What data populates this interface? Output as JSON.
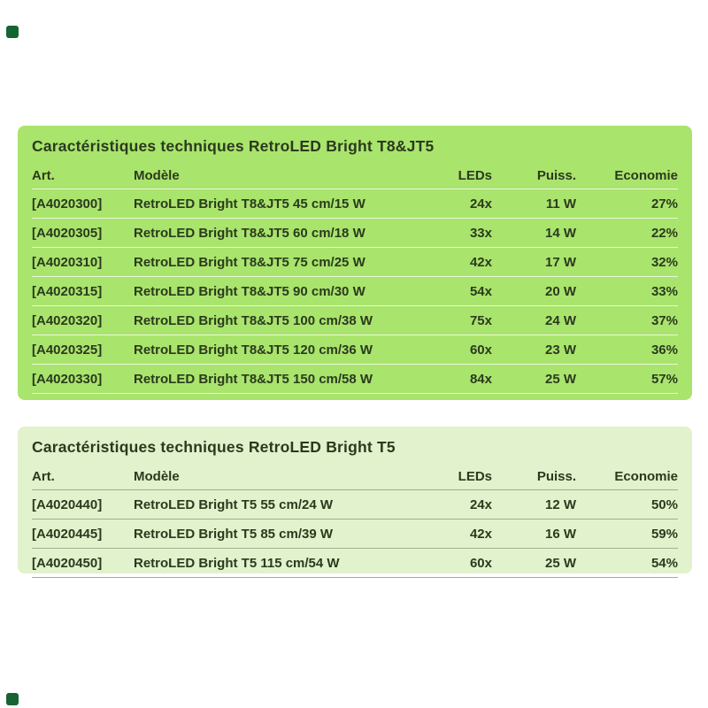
{
  "page": {
    "background": "#ffffff",
    "corner_mark_color": "#166433"
  },
  "tables": [
    {
      "title": "Caractéristiques techniques RetroLED Bright T8&JT5",
      "background": "#a9e46d",
      "text_color": "#2b3a1d",
      "separator_color": "rgba(255,255,255,0.75)",
      "columns": {
        "art": "Art.",
        "model": "Modèle",
        "leds": "LEDs",
        "puiss": "Puiss.",
        "economie": "Economie"
      },
      "rows": [
        {
          "art": "[A4020300]",
          "model": "RetroLED Bright T8&JT5 45 cm/15 W",
          "leds": "24x",
          "puiss": "11 W",
          "economie": "27%"
        },
        {
          "art": "[A4020305]",
          "model": "RetroLED Bright T8&JT5 60 cm/18 W",
          "leds": "33x",
          "puiss": "14 W",
          "economie": "22%"
        },
        {
          "art": "[A4020310]",
          "model": "RetroLED Bright T8&JT5 75 cm/25 W",
          "leds": "42x",
          "puiss": "17 W",
          "economie": "32%"
        },
        {
          "art": "[A4020315]",
          "model": "RetroLED Bright T8&JT5 90 cm/30 W",
          "leds": "54x",
          "puiss": "20 W",
          "economie": "33%"
        },
        {
          "art": "[A4020320]",
          "model": "RetroLED Bright T8&JT5 100 cm/38 W",
          "leds": "75x",
          "puiss": "24 W",
          "economie": "37%"
        },
        {
          "art": "[A4020325]",
          "model": "RetroLED Bright T8&JT5 120 cm/36 W",
          "leds": "60x",
          "puiss": "23 W",
          "economie": "36%"
        },
        {
          "art": "[A4020330]",
          "model": "RetroLED Bright T8&JT5 150 cm/58 W",
          "leds": "84x",
          "puiss": "25 W",
          "economie": "57%"
        }
      ]
    },
    {
      "title": "Caractéristiques techniques RetroLED Bright T5",
      "background": "#e1f2cd",
      "text_color": "#2b3a1d",
      "separator_color": "#9fae90",
      "columns": {
        "art": "Art.",
        "model": "Modèle",
        "leds": "LEDs",
        "puiss": "Puiss.",
        "economie": "Economie"
      },
      "rows": [
        {
          "art": "[A4020440]",
          "model": "RetroLED Bright T5 55 cm/24 W",
          "leds": "24x",
          "puiss": "12 W",
          "economie": "50%"
        },
        {
          "art": "[A4020445]",
          "model": "RetroLED Bright T5 85 cm/39 W",
          "leds": "42x",
          "puiss": "16 W",
          "economie": "59%"
        },
        {
          "art": "[A4020450]",
          "model": "RetroLED Bright T5 115 cm/54 W",
          "leds": "60x",
          "puiss": "25 W",
          "economie": "54%"
        }
      ]
    }
  ]
}
